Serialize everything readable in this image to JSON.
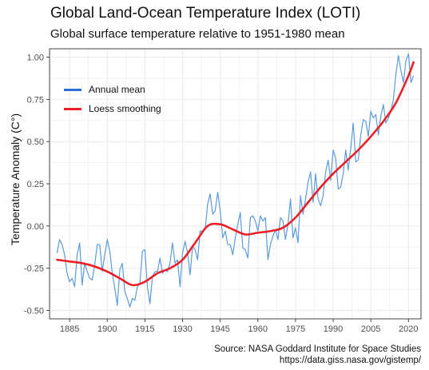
{
  "title": "Global Land-Ocean Temperature Index (LOTI)",
  "subtitle": "Global surface temperature relative to 1951-1980 mean",
  "caption_line1": "Source: NASA Goddard Institute for Space Studies",
  "caption_line2": "https://data.giss.nasa.gov/gistemp/",
  "colors": {
    "annual": "#5b9bdc",
    "annual_legend": "#2a6fd6",
    "loess": "#ec1f27",
    "grid": "#ebebeb",
    "border": "#333333"
  },
  "chart_data": {
    "type": "line",
    "title": "Global Land-Ocean Temperature Index (LOTI)",
    "subtitle": "Global surface temperature relative to 1951-1980 mean",
    "xlabel": "",
    "ylabel": "Temperature Anomaly (C°)",
    "xlim": [
      1877,
      2025
    ],
    "ylim": [
      -0.55,
      1.05
    ],
    "x_ticks": [
      1885,
      1900,
      1915,
      1930,
      1945,
      1960,
      1975,
      1990,
      2005,
      2020
    ],
    "y_ticks": [
      -0.5,
      -0.25,
      0.0,
      0.25,
      0.5,
      0.75,
      1.0
    ],
    "y_tick_labels": [
      "-0.50",
      "-0.25",
      "0.00",
      "0.25",
      "0.50",
      "0.75",
      "1.00"
    ],
    "grid": true,
    "legend_position": "top-left",
    "series": [
      {
        "name": "Annual mean",
        "x_start": 1880,
        "x_end": 2022,
        "values": [
          -0.16,
          -0.08,
          -0.11,
          -0.17,
          -0.28,
          -0.33,
          -0.31,
          -0.36,
          -0.17,
          -0.1,
          -0.35,
          -0.22,
          -0.27,
          -0.31,
          -0.32,
          -0.23,
          -0.11,
          -0.11,
          -0.27,
          -0.17,
          -0.08,
          -0.15,
          -0.28,
          -0.37,
          -0.47,
          -0.26,
          -0.22,
          -0.39,
          -0.43,
          -0.48,
          -0.43,
          -0.44,
          -0.36,
          -0.34,
          -0.15,
          -0.14,
          -0.36,
          -0.46,
          -0.3,
          -0.27,
          -0.27,
          -0.19,
          -0.28,
          -0.26,
          -0.27,
          -0.22,
          -0.1,
          -0.22,
          -0.2,
          -0.36,
          -0.16,
          -0.09,
          -0.16,
          -0.29,
          -0.12,
          -0.14,
          -0.2,
          -0.03,
          -0.03,
          -0.02,
          0.13,
          0.19,
          0.07,
          0.09,
          0.2,
          0.09,
          -0.07,
          -0.03,
          -0.11,
          -0.11,
          -0.17,
          -0.07,
          0.01,
          0.08,
          -0.13,
          -0.14,
          -0.19,
          0.05,
          0.06,
          0.03,
          -0.03,
          0.06,
          0.03,
          0.05,
          -0.2,
          -0.11,
          -0.06,
          -0.02,
          -0.08,
          0.05,
          0.03,
          -0.08,
          0.01,
          0.16,
          -0.07,
          -0.01,
          -0.1,
          0.18,
          0.07,
          0.16,
          0.26,
          0.32,
          0.14,
          0.31,
          0.16,
          0.12,
          0.18,
          0.32,
          0.39,
          0.27,
          0.45,
          0.4,
          0.22,
          0.23,
          0.31,
          0.45,
          0.33,
          0.46,
          0.61,
          0.38,
          0.39,
          0.54,
          0.63,
          0.62,
          0.53,
          0.68,
          0.64,
          0.66,
          0.54,
          0.65,
          0.72,
          0.61,
          0.64,
          0.68,
          0.75,
          0.9,
          1.01,
          0.92,
          0.85,
          0.98,
          1.02,
          0.85,
          0.89
        ]
      },
      {
        "name": "Loess smoothing",
        "x": [
          1880,
          1885,
          1890,
          1895,
          1900,
          1905,
          1910,
          1915,
          1920,
          1925,
          1930,
          1935,
          1940,
          1945,
          1950,
          1955,
          1960,
          1965,
          1970,
          1975,
          1980,
          1985,
          1990,
          1995,
          2000,
          2005,
          2010,
          2015,
          2020,
          2022
        ],
        "values": [
          -0.2,
          -0.21,
          -0.22,
          -0.24,
          -0.27,
          -0.31,
          -0.35,
          -0.33,
          -0.28,
          -0.25,
          -0.2,
          -0.1,
          0.0,
          0.01,
          -0.02,
          -0.05,
          -0.04,
          -0.03,
          -0.01,
          0.05,
          0.14,
          0.23,
          0.31,
          0.38,
          0.45,
          0.53,
          0.62,
          0.73,
          0.89,
          0.97
        ]
      }
    ]
  }
}
